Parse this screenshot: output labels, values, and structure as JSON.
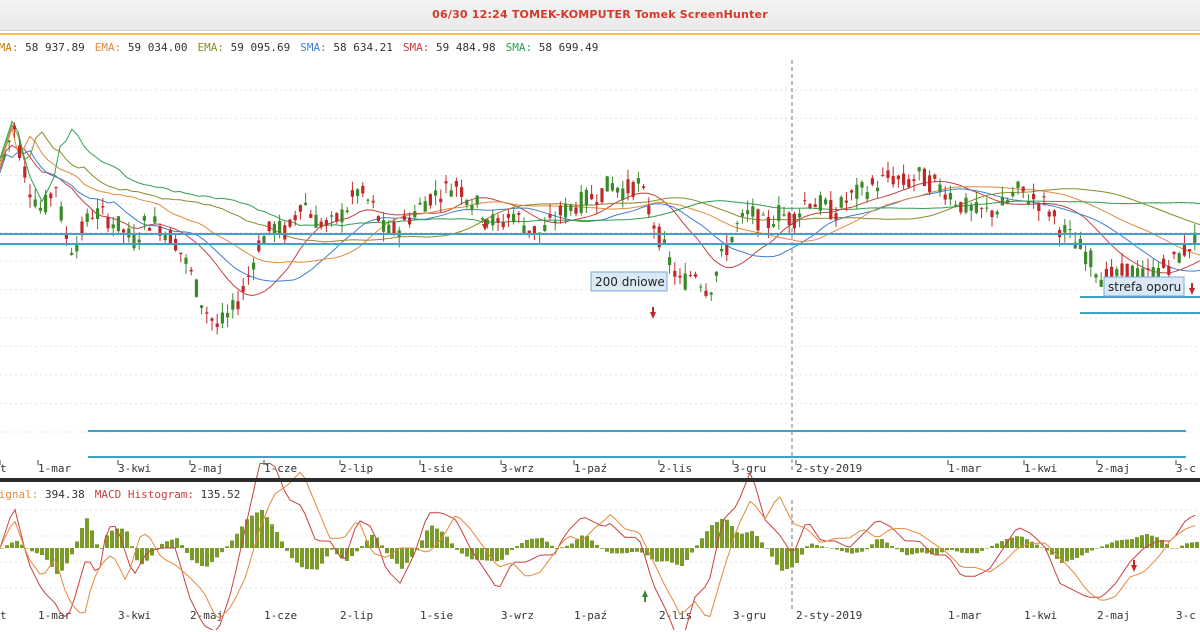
{
  "window": {
    "title": "06/30  12:24  TOMEK-KOMPUTER  Tomek  ScreenHunter"
  },
  "indicators": [
    {
      "label": "EMA:",
      "value": "58 937.89",
      "color": "#c77a00"
    },
    {
      "label": "EMA:",
      "value": "59 034.00",
      "color": "#e38a3c"
    },
    {
      "label": "EMA:",
      "value": "59 095.69",
      "color": "#8b8b2b"
    },
    {
      "label": "SMA:",
      "value": "58 634.21",
      "color": "#3f7fd0"
    },
    {
      "label": "SMA:",
      "value": "59 484.98",
      "color": "#c84040"
    },
    {
      "label": "SMA:",
      "value": "58 699.49",
      "color": "#2ea050"
    }
  ],
  "macd_legend": [
    {
      "label": "Signal:",
      "value": "394.38",
      "color": "#e38a3c"
    },
    {
      "label": "MACD Histogram:",
      "value": "135.52",
      "color": "#c84040"
    }
  ],
  "annotations": {
    "ma200": "200 dniowe",
    "resistance": "strefa oporu"
  },
  "colors": {
    "up": "#3a8a2a",
    "down": "#c0282a",
    "hline": "#3fa3c9",
    "ma_green": "#2ea050",
    "ma_olive": "#8b8b2b",
    "ma_orange": "#e38a3c",
    "ma_blue": "#3f7fd0",
    "ma_red": "#c84040",
    "hist": "#7a9a2a",
    "macd_red": "#c84040",
    "macd_orange": "#e38a3c"
  },
  "chart_data": {
    "type": "candlestick",
    "x_ticks": [
      "t",
      "1-mar",
      "3-kwi",
      "2-maj",
      "1-cze",
      "2-lip",
      "1-sie",
      "3-wrz",
      "1-paź",
      "2-lis",
      "3-gru",
      "2-sty-2019",
      "1-mar",
      "1-kwi",
      "2-maj",
      "3-c"
    ],
    "price_path": [
      [
        0,
        78
      ],
      [
        2,
        90
      ],
      [
        4,
        74
      ],
      [
        6,
        66
      ],
      [
        8,
        74
      ],
      [
        9,
        62
      ],
      [
        10,
        56
      ],
      [
        11,
        58
      ],
      [
        13,
        66
      ],
      [
        15,
        65
      ],
      [
        17,
        62
      ],
      [
        19,
        58
      ],
      [
        21,
        64
      ],
      [
        23,
        62
      ],
      [
        25,
        58
      ],
      [
        27,
        50
      ],
      [
        29,
        40
      ],
      [
        31,
        34
      ],
      [
        33,
        38
      ],
      [
        35,
        46
      ],
      [
        37,
        58
      ],
      [
        39,
        62
      ],
      [
        41,
        60
      ],
      [
        43,
        70
      ],
      [
        45,
        64
      ],
      [
        47,
        62
      ],
      [
        49,
        66
      ],
      [
        51,
        72
      ],
      [
        53,
        68
      ],
      [
        55,
        60
      ],
      [
        57,
        62
      ],
      [
        59,
        66
      ],
      [
        61,
        70
      ],
      [
        63,
        72
      ],
      [
        65,
        74
      ],
      [
        67,
        70
      ],
      [
        69,
        66
      ],
      [
        71,
        62
      ],
      [
        73,
        66
      ],
      [
        75,
        62
      ],
      [
        77,
        60
      ],
      [
        78,
        62
      ],
      [
        80,
        66
      ],
      [
        82,
        68
      ],
      [
        84,
        70
      ],
      [
        86,
        72
      ],
      [
        87,
        74
      ],
      [
        89,
        72
      ],
      [
        91,
        74
      ],
      [
        93,
        64
      ],
      [
        95,
        54
      ],
      [
        97,
        46
      ],
      [
        99,
        50
      ],
      [
        101,
        44
      ],
      [
        103,
        54
      ],
      [
        105,
        62
      ],
      [
        107,
        66
      ],
      [
        109,
        62
      ],
      [
        111,
        66
      ],
      [
        113,
        64
      ],
      [
        115,
        70
      ],
      [
        117,
        68
      ],
      [
        119,
        66
      ],
      [
        121,
        70
      ],
      [
        123,
        72
      ],
      [
        125,
        74
      ],
      [
        127,
        76
      ],
      [
        129,
        74
      ],
      [
        131,
        76
      ],
      [
        133,
        74
      ],
      [
        135,
        72
      ],
      [
        137,
        68
      ],
      [
        139,
        66
      ],
      [
        141,
        66
      ],
      [
        143,
        68
      ],
      [
        145,
        72
      ],
      [
        147,
        70
      ],
      [
        149,
        68
      ],
      [
        151,
        62
      ],
      [
        153,
        58
      ],
      [
        155,
        54
      ],
      [
        157,
        48
      ],
      [
        159,
        48
      ],
      [
        161,
        50
      ],
      [
        163,
        48
      ],
      [
        165,
        50
      ],
      [
        167,
        52
      ],
      [
        169,
        56
      ],
      [
        171,
        60
      ]
    ],
    "candle_x_range": [
      0,
      171
    ],
    "macd_note": "MACD line, signal line and histogram oscillating around zero",
    "horizontal_levels": "support and resistance lines"
  }
}
